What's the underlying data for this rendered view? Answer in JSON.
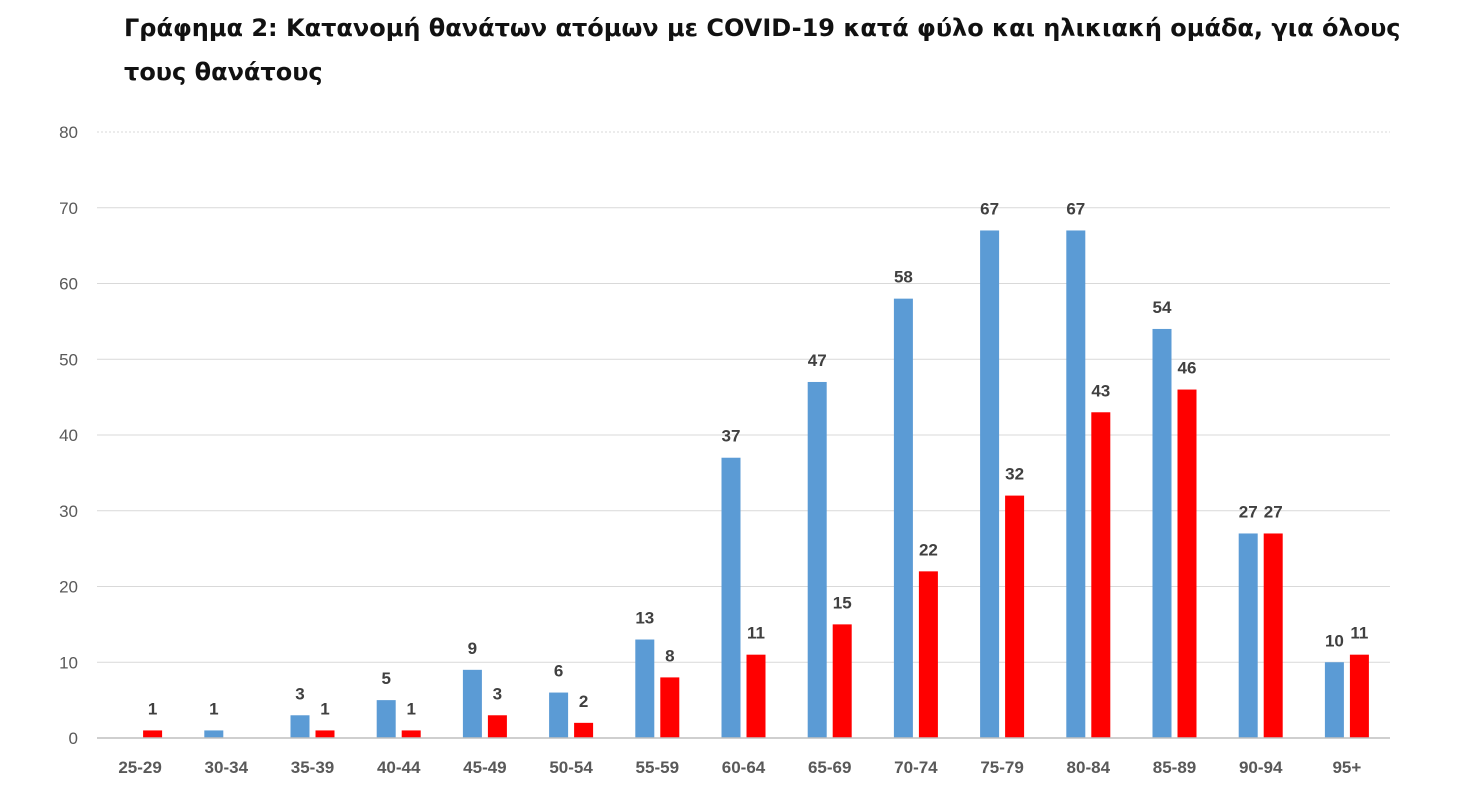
{
  "chart_data": {
    "type": "bar",
    "title": "Γράφημα 2: Κατανομή θανάτων ατόμων με COVID-19 κατά φύλο και ηλικιακή ομάδα, για όλους τους θανάτους",
    "categories": [
      "25-29",
      "30-34",
      "35-39",
      "40-44",
      "45-49",
      "50-54",
      "55-59",
      "60-64",
      "65-69",
      "70-74",
      "75-79",
      "80-84",
      "85-89",
      "90-94",
      "95+"
    ],
    "series": [
      {
        "color": "#5b9bd5",
        "values": [
          0,
          1,
          3,
          5,
          9,
          6,
          13,
          37,
          47,
          58,
          67,
          67,
          54,
          27,
          10
        ]
      },
      {
        "color": "#ff0000",
        "values": [
          1,
          0,
          1,
          1,
          3,
          2,
          8,
          11,
          15,
          22,
          32,
          43,
          46,
          27,
          11
        ]
      }
    ],
    "data_labels": [
      [
        "",
        "1",
        "3",
        "5",
        "9",
        "6",
        "13",
        "37",
        "47",
        "58",
        "67",
        "67",
        "54",
        "27",
        "10"
      ],
      [
        "1",
        "",
        "1",
        "1",
        "3",
        "2",
        "8",
        "11",
        "15",
        "22",
        "32",
        "43",
        "46",
        "27",
        "11"
      ]
    ],
    "yticks": [
      "0",
      "10",
      "20",
      "30",
      "40",
      "50",
      "60",
      "70",
      "80"
    ],
    "ylim": [
      0,
      80
    ],
    "grid": true,
    "legend": "none",
    "xlabel": "",
    "ylabel": ""
  }
}
